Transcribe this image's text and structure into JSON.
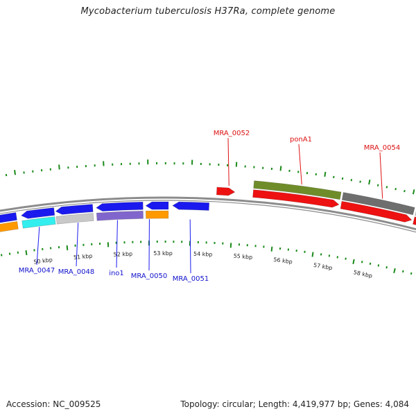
{
  "title": "Mycobacterium tuberculosis H37Ra, complete genome",
  "accession_text": "Accession: NC_009525",
  "topology_text": "Topology: circular; Length: 4,419,977 bp; Genes: 4,084",
  "colors": {
    "backbone": "#8c8c8c",
    "tick": "#1a8a1a",
    "forward_gene": "#ee1111",
    "reverse_gene": "#1a1aee",
    "forward_label": "#dd1111",
    "reverse_label": "#1111cc",
    "leader": "#1a1aee",
    "leader_forward": "#dd1111"
  },
  "scale_labels": [
    "50 kbp",
    "51 kbp",
    "52 kbp",
    "53 kbp",
    "54 kbp",
    "55 kbp",
    "56 kbp",
    "57 kbp",
    "58 kbp"
  ],
  "reverse_genes": [
    {
      "name": "",
      "color": "#1a1aee",
      "category_color": "#ff9900"
    },
    {
      "name": "MRA_0047",
      "color": "#1a1aee",
      "category_color": "#33eeee"
    },
    {
      "name": "MRA_0048",
      "color": "#1a1aee",
      "category_color": "#c8c8c8"
    },
    {
      "name": "ino1",
      "color": "#1a1aee",
      "category_color": "#8066cc"
    },
    {
      "name": "MRA_0050",
      "color": "#1a1aee",
      "category_color": "#ff9900"
    },
    {
      "name": "MRA_0051",
      "color": "#1a1aee",
      "category_color": ""
    }
  ],
  "forward_genes": [
    {
      "name": "MRA_0052",
      "color": "#ee1111",
      "category_color": ""
    },
    {
      "name": "ponA1",
      "color": "#ee1111",
      "category_color": "#6f8c2a"
    },
    {
      "name": "MRA_0054",
      "color": "#ee1111",
      "category_color": "#6e6e6e"
    },
    {
      "name": "",
      "color": "#ee1111",
      "category_color": "#c8c8c8"
    }
  ]
}
